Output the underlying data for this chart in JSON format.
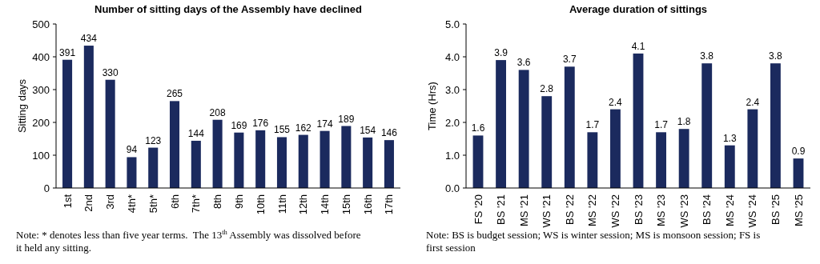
{
  "chart_data": [
    {
      "type": "bar",
      "title": "Number of sitting days of the Assembly have declined",
      "ylabel": "Sitting days",
      "categories": [
        "1st",
        "2nd",
        "3rd",
        "4th*",
        "5th*",
        "6th",
        "7th*",
        "8th",
        "9th",
        "10th",
        "11th",
        "12th",
        "14th",
        "15th",
        "16th",
        "17th"
      ],
      "values": [
        391,
        434,
        330,
        94,
        123,
        265,
        144,
        208,
        169,
        176,
        155,
        162,
        174,
        189,
        154,
        146
      ],
      "color": "#1b2a5e",
      "ylim": [
        0,
        500
      ],
      "yticks": [
        0,
        100,
        200,
        300,
        400,
        500
      ],
      "data_labels": true,
      "grid": false,
      "annotations": [
        "Note: * denotes less than five year terms.  The 13$^{th}$ Assembly was dissolved before it held any sitting."
      ]
    },
    {
      "type": "bar",
      "title": "Average duration of sittings",
      "ylabel": "Time (Hrs)",
      "categories": [
        "FS '20",
        "BS '21",
        "MS '21",
        "WS '21",
        "BS '22",
        "MS '22",
        "WS '22",
        "BS '23",
        "MS '23",
        "WS '23",
        "BS '24",
        "MS '24",
        "WS '24",
        "BS '25",
        "MS '25"
      ],
      "values": [
        1.6,
        3.9,
        3.6,
        2.8,
        3.7,
        1.7,
        2.4,
        4.1,
        1.7,
        1.8,
        3.8,
        1.3,
        2.4,
        3.8,
        0.9
      ],
      "color": "#1b2a5e",
      "ylim": [
        0,
        5
      ],
      "yticks": [
        {
          "value": 0,
          "label": "0.0"
        },
        {
          "value": 1,
          "label": "1.0"
        },
        {
          "value": 2,
          "label": "2.0"
        },
        {
          "value": 3,
          "label": "3.0"
        },
        {
          "value": 4,
          "label": "4.0"
        },
        {
          "value": 5,
          "label": "5.0"
        }
      ],
      "data_labels": true,
      "grid": false,
      "annotations": [
        "Note: BS is budget session; WS is winter session; MS is monsoon session; FS is first session"
      ]
    }
  ]
}
